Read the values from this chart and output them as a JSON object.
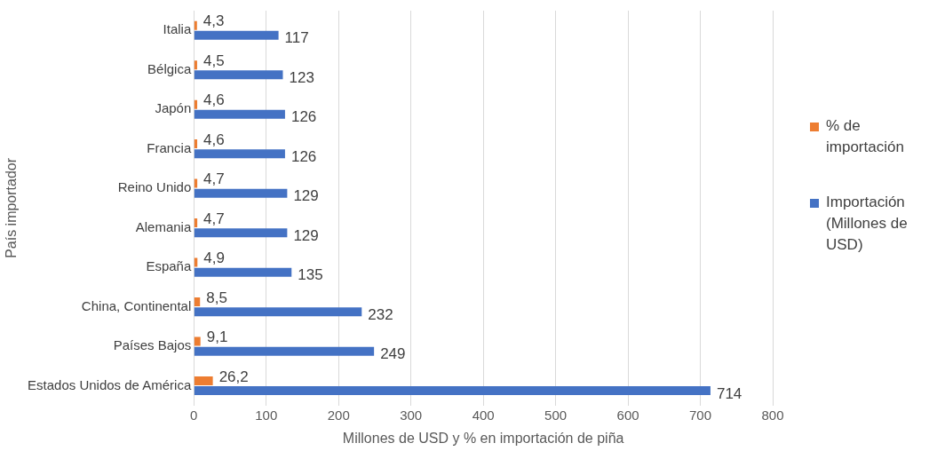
{
  "chart_data": {
    "type": "bar",
    "orientation": "horizontal",
    "xlabel": "Millones de USD y % en importación de piña",
    "ylabel": "País importador",
    "categories": [
      "Italia",
      "Bélgica",
      "Japón",
      "Francia",
      "Reino Unido",
      "Alemania",
      "España",
      "China, Continental",
      "Países Bajos",
      "Estados Unidos de América"
    ],
    "series": [
      {
        "name": "% de importación",
        "color": "#ed7d31",
        "values": [
          4.3,
          4.5,
          4.6,
          4.6,
          4.7,
          4.7,
          4.9,
          8.5,
          9.1,
          26.2
        ],
        "value_labels": [
          "4,3",
          "4,5",
          "4,6",
          "4,6",
          "4,7",
          "4,7",
          "4,9",
          "8,5",
          "9,1",
          "26,2"
        ]
      },
      {
        "name": "Importación (Millones de USD)",
        "color": "#4472c4",
        "values": [
          117,
          123,
          126,
          126,
          129,
          129,
          135,
          232,
          249,
          714
        ],
        "value_labels": [
          "117",
          "123",
          "126",
          "126",
          "129",
          "129",
          "135",
          "232",
          "249",
          "714"
        ]
      }
    ],
    "xlim": [
      0,
      800
    ],
    "xticks": [
      0,
      100,
      200,
      300,
      400,
      500,
      600,
      700,
      800
    ],
    "grid": "x",
    "legend": "right"
  }
}
